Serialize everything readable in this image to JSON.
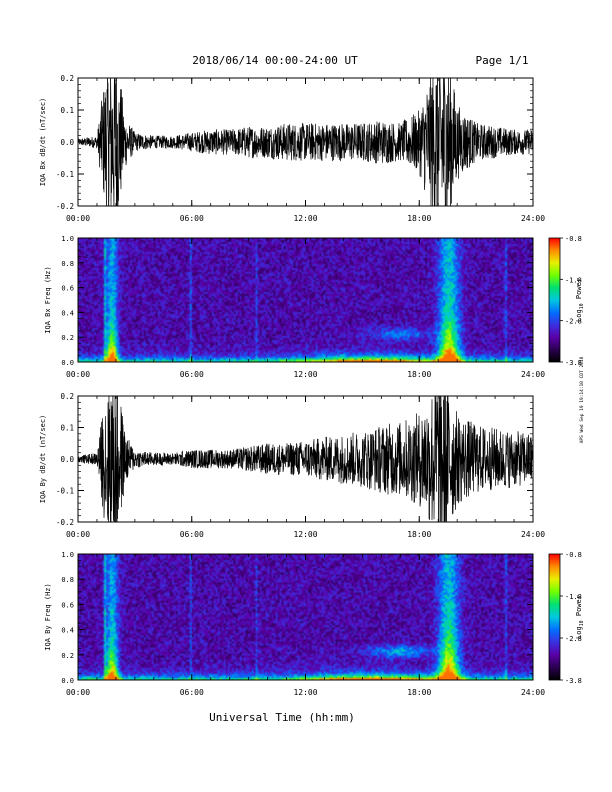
{
  "header": {
    "title": "2018/06/14  00:00-24:00 UT",
    "page": "Page 1/1"
  },
  "footer": {
    "xaxis_label": "Universal Time (hh:mm)",
    "side_note": "APS Wed Sep 19 19:14:10 CDT 2018"
  },
  "colorbar": {
    "ticks": [
      "-0.8",
      "-1.8",
      "-2.8",
      "-3.8"
    ],
    "label": "Log",
    "label_sub": "10",
    "label_tail": " Power",
    "range": [
      -3.8,
      -0.8
    ],
    "colors": [
      "#000000",
      "#2a0050",
      "#5a00a8",
      "#3a30e0",
      "#0070ff",
      "#00c8e0",
      "#00e070",
      "#70ff00",
      "#e8f000",
      "#ff8c00",
      "#ff0000"
    ]
  },
  "chart_data": [
    {
      "type": "line",
      "ylabel": "IQA Bx dB/dt (nT/sec)",
      "xticks": [
        "00:00",
        "06:00",
        "12:00",
        "18:00",
        "24:00"
      ],
      "xlim": [
        0,
        24
      ],
      "ylim": [
        -0.2,
        0.2
      ],
      "yticks": [
        "0.2",
        "0.1",
        "0.0",
        "-0.1",
        "-0.2"
      ],
      "series": [
        {
          "x_hours": [
            0,
            1,
            1.5,
            2,
            2.5,
            3,
            4,
            5,
            6,
            7,
            8,
            9,
            10,
            11,
            12,
            13,
            14,
            15,
            16,
            17,
            18,
            18.5,
            19,
            19.5,
            20,
            21,
            22,
            23,
            24
          ],
          "amplitude": [
            0.01,
            0.02,
            0.25,
            0.3,
            0.08,
            0.03,
            0.02,
            0.02,
            0.03,
            0.04,
            0.04,
            0.05,
            0.05,
            0.06,
            0.06,
            0.06,
            0.06,
            0.06,
            0.07,
            0.06,
            0.1,
            0.2,
            0.3,
            0.3,
            0.12,
            0.06,
            0.05,
            0.04,
            0.04
          ]
        }
      ]
    },
    {
      "type": "heatmap",
      "ylabel": "IQA Bx Freq (Hz)",
      "xticks": [
        "00:00",
        "06:00",
        "12:00",
        "18:00",
        "24:00"
      ],
      "xlim": [
        0,
        24
      ],
      "ylim": [
        0,
        1.0
      ],
      "yticks": [
        "1.0",
        "0.8",
        "0.6",
        "0.4",
        "0.2",
        "0.0"
      ],
      "zlim": [
        -3.8,
        -0.8
      ]
    },
    {
      "type": "line",
      "ylabel": "IQA By dB/dt (nT/sec)",
      "xticks": [
        "00:00",
        "06:00",
        "12:00",
        "18:00",
        "24:00"
      ],
      "xlim": [
        0,
        24
      ],
      "ylim": [
        -0.2,
        0.2
      ],
      "yticks": [
        "0.2",
        "0.1",
        "0.0",
        "-0.1",
        "-0.2"
      ],
      "series": [
        {
          "x_hours": [
            0,
            1,
            1.5,
            2,
            2.5,
            3,
            4,
            5,
            6,
            7,
            8,
            9,
            10,
            11,
            12,
            13,
            14,
            15,
            16,
            17,
            18,
            18.5,
            19,
            19.5,
            20,
            21,
            22,
            23,
            24
          ],
          "amplitude": [
            0.01,
            0.02,
            0.25,
            0.3,
            0.08,
            0.03,
            0.02,
            0.02,
            0.03,
            0.03,
            0.03,
            0.04,
            0.05,
            0.05,
            0.06,
            0.07,
            0.08,
            0.09,
            0.11,
            0.12,
            0.15,
            0.2,
            0.3,
            0.25,
            0.15,
            0.11,
            0.1,
            0.09,
            0.08
          ]
        }
      ]
    },
    {
      "type": "heatmap",
      "ylabel": "IQA By Freq (Hz)",
      "xticks": [
        "00:00",
        "06:00",
        "12:00",
        "18:00",
        "24:00"
      ],
      "xlim": [
        0,
        24
      ],
      "ylim": [
        0,
        1.0
      ],
      "yticks": [
        "1.0",
        "0.8",
        "0.6",
        "0.4",
        "0.2",
        "0.0"
      ],
      "zlim": [
        -3.8,
        -0.8
      ]
    }
  ]
}
